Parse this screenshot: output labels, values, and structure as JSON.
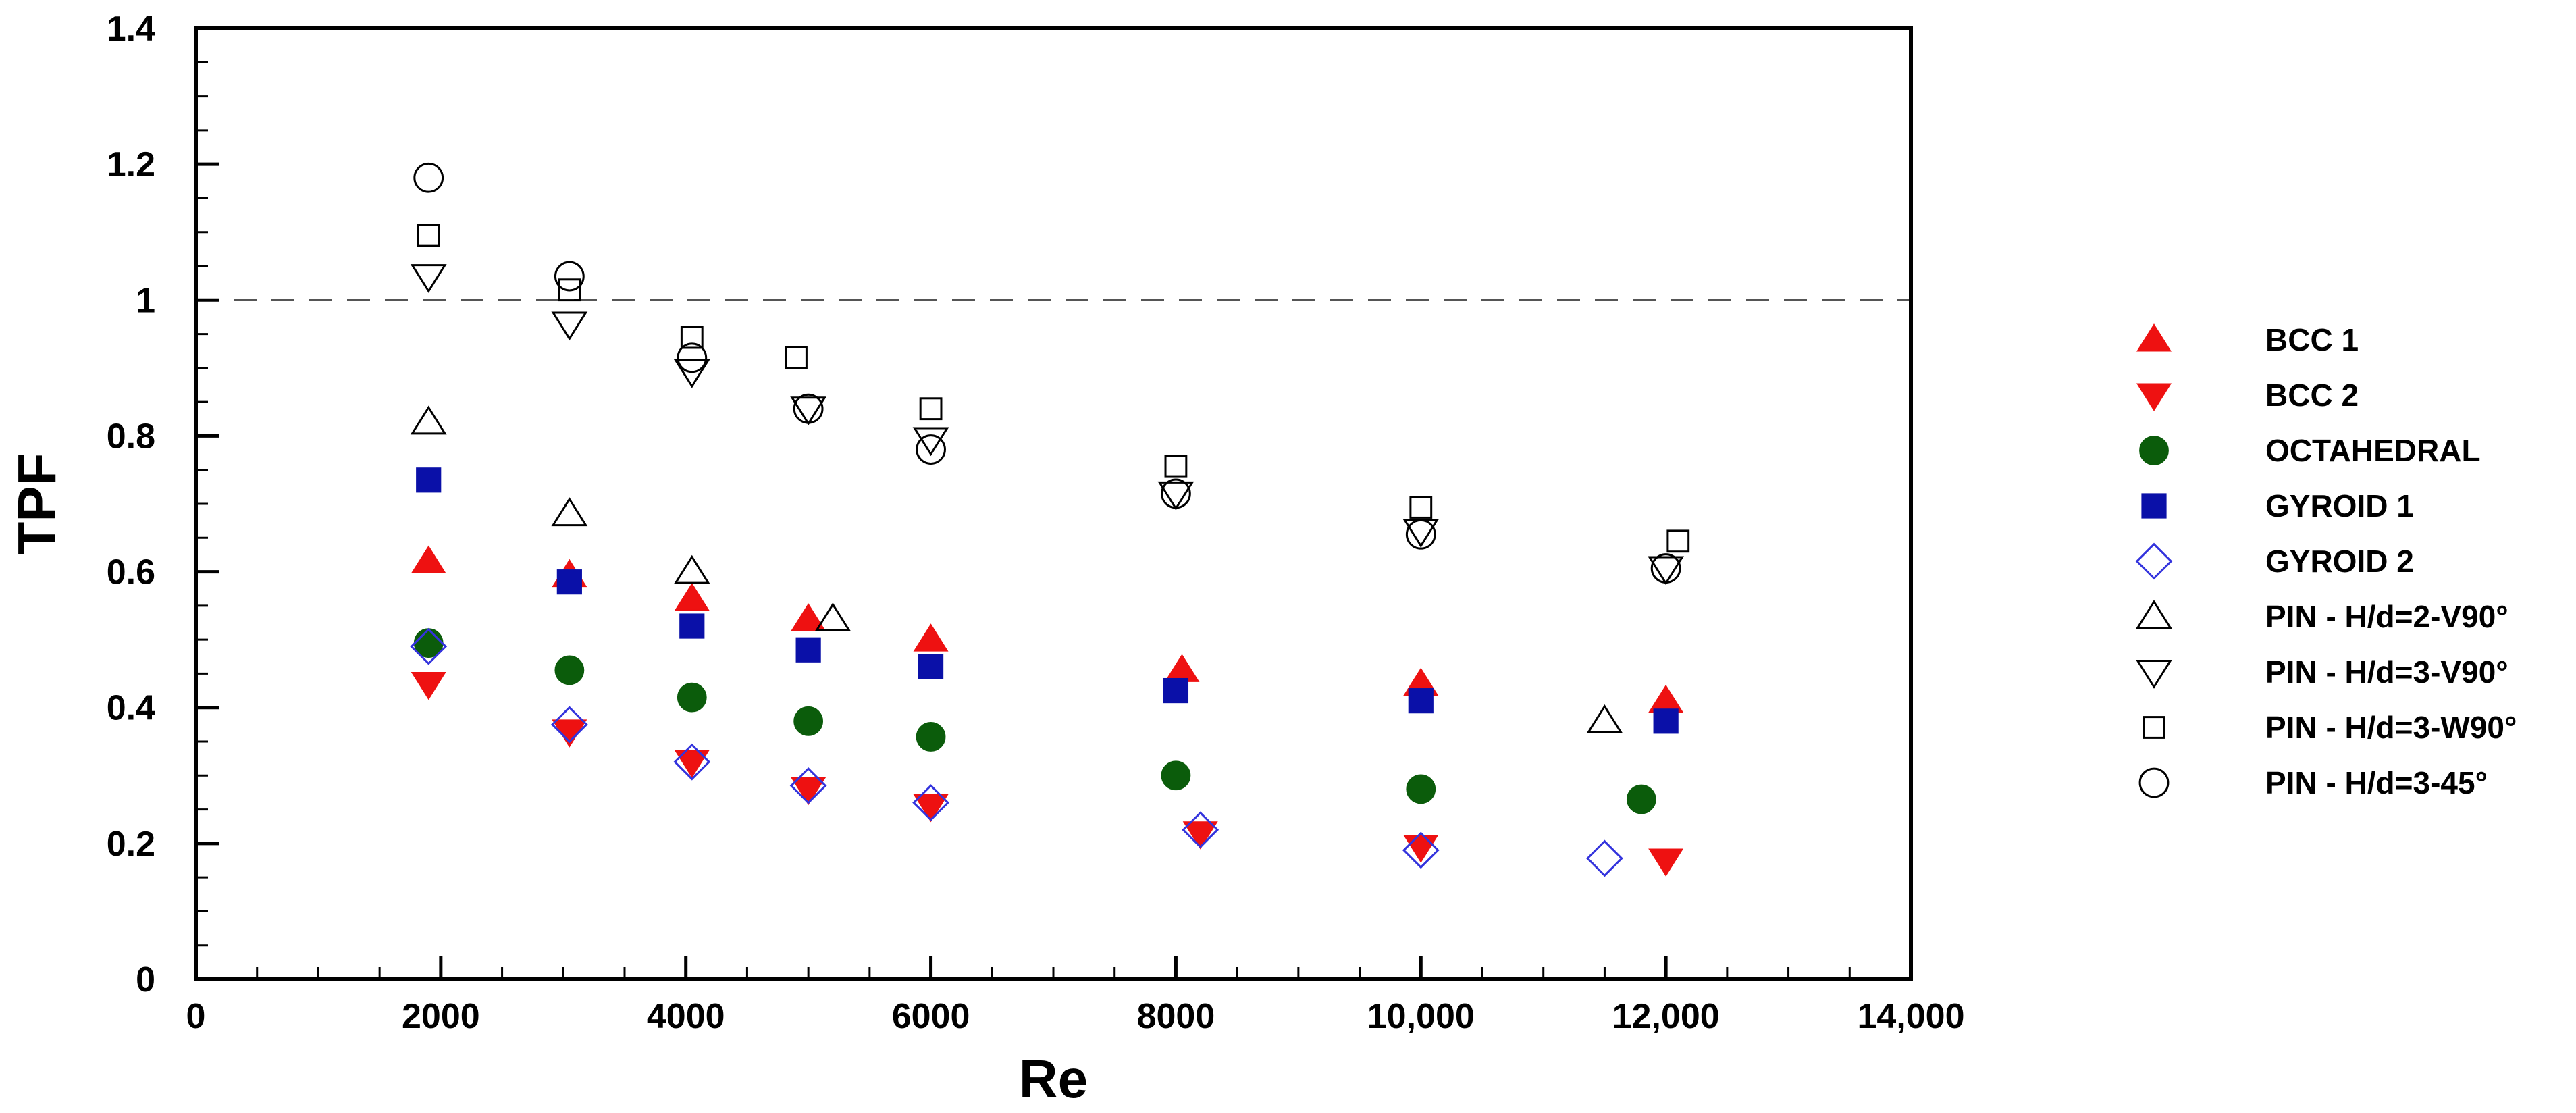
{
  "chart_data": {
    "type": "scatter",
    "title": "",
    "xlabel": "Re",
    "ylabel": "TPF",
    "xlim": [
      0,
      14000
    ],
    "ylim": [
      0,
      1.4
    ],
    "x_ticks": [
      0,
      2000,
      4000,
      6000,
      8000,
      10000,
      12000,
      14000
    ],
    "x_tick_labels": [
      "0",
      "2000",
      "4000",
      "6000",
      "8000",
      "10,000",
      "12,000",
      "14,000"
    ],
    "y_ticks": [
      0,
      0.2,
      0.4,
      0.6,
      0.8,
      1,
      1.2,
      1.4
    ],
    "y_tick_labels": [
      "0",
      "0.2",
      "0.4",
      "0.6",
      "0.8",
      "1",
      "1.2",
      "1.4"
    ],
    "reference_line": {
      "y": 1,
      "style": "dashed"
    },
    "grid": false,
    "legend_position": "right",
    "series": [
      {
        "name": "BCC 1",
        "marker": "triangle-up",
        "filled": true,
        "color": "#ee1111",
        "points": [
          [
            1900,
            0.615
          ],
          [
            3050,
            0.595
          ],
          [
            4050,
            0.56
          ],
          [
            5000,
            0.53
          ],
          [
            6000,
            0.5
          ],
          [
            8050,
            0.455
          ],
          [
            10000,
            0.435
          ],
          [
            12000,
            0.41
          ]
        ]
      },
      {
        "name": "BCC 2",
        "marker": "triangle-down",
        "filled": true,
        "color": "#ee1111",
        "points": [
          [
            1900,
            0.435
          ],
          [
            3050,
            0.365
          ],
          [
            4050,
            0.32
          ],
          [
            5000,
            0.28
          ],
          [
            6000,
            0.255
          ],
          [
            8200,
            0.215
          ],
          [
            10000,
            0.195
          ],
          [
            12000,
            0.175
          ]
        ]
      },
      {
        "name": "OCTAHEDRAL",
        "marker": "circle",
        "filled": true,
        "color": "#0b5c0b",
        "points": [
          [
            1900,
            0.495
          ],
          [
            3050,
            0.455
          ],
          [
            4050,
            0.415
          ],
          [
            5000,
            0.38
          ],
          [
            6000,
            0.357
          ],
          [
            8000,
            0.3
          ],
          [
            10000,
            0.28
          ],
          [
            11800,
            0.265
          ]
        ]
      },
      {
        "name": "GYROID 1",
        "marker": "square",
        "filled": true,
        "color": "#0a10a8",
        "points": [
          [
            1900,
            0.735
          ],
          [
            3050,
            0.585
          ],
          [
            4050,
            0.52
          ],
          [
            5000,
            0.485
          ],
          [
            6000,
            0.46
          ],
          [
            8000,
            0.425
          ],
          [
            10000,
            0.41
          ],
          [
            12000,
            0.38
          ]
        ]
      },
      {
        "name": "GYROID 2",
        "marker": "diamond",
        "filled": false,
        "color": "#3333dd",
        "points": [
          [
            1900,
            0.49
          ],
          [
            3050,
            0.375
          ],
          [
            4050,
            0.32
          ],
          [
            5000,
            0.285
          ],
          [
            6000,
            0.26
          ],
          [
            8200,
            0.22
          ],
          [
            10000,
            0.19
          ],
          [
            11500,
            0.178
          ]
        ]
      },
      {
        "name": "PIN - H/d=2-V90°",
        "marker": "triangle-up",
        "filled": false,
        "color": "#000000",
        "points": [
          [
            1900,
            0.82
          ],
          [
            3050,
            0.685
          ],
          [
            4050,
            0.6
          ],
          [
            5200,
            0.53
          ],
          [
            11500,
            0.38
          ]
        ]
      },
      {
        "name": "PIN - H/d=3-V90°",
        "marker": "triangle-down",
        "filled": false,
        "color": "#000000",
        "points": [
          [
            1900,
            1.035
          ],
          [
            3050,
            0.965
          ],
          [
            4050,
            0.895
          ],
          [
            5000,
            0.84
          ],
          [
            6000,
            0.795
          ],
          [
            8000,
            0.715
          ],
          [
            10000,
            0.66
          ],
          [
            12000,
            0.605
          ]
        ]
      },
      {
        "name": "PIN - H/d=3-W90°",
        "marker": "square",
        "filled": false,
        "color": "#000000",
        "points": [
          [
            1900,
            1.095
          ],
          [
            3050,
            1.015
          ],
          [
            4050,
            0.945
          ],
          [
            4900,
            0.915
          ],
          [
            6000,
            0.84
          ],
          [
            8000,
            0.755
          ],
          [
            10000,
            0.695
          ],
          [
            12100,
            0.645
          ]
        ]
      },
      {
        "name": "PIN - H/d=3-45°",
        "marker": "circle",
        "filled": false,
        "color": "#000000",
        "points": [
          [
            1900,
            1.18
          ],
          [
            3050,
            1.035
          ],
          [
            4050,
            0.915
          ],
          [
            5000,
            0.84
          ],
          [
            6000,
            0.78
          ],
          [
            8000,
            0.715
          ],
          [
            10000,
            0.655
          ],
          [
            12000,
            0.605
          ]
        ]
      }
    ]
  }
}
